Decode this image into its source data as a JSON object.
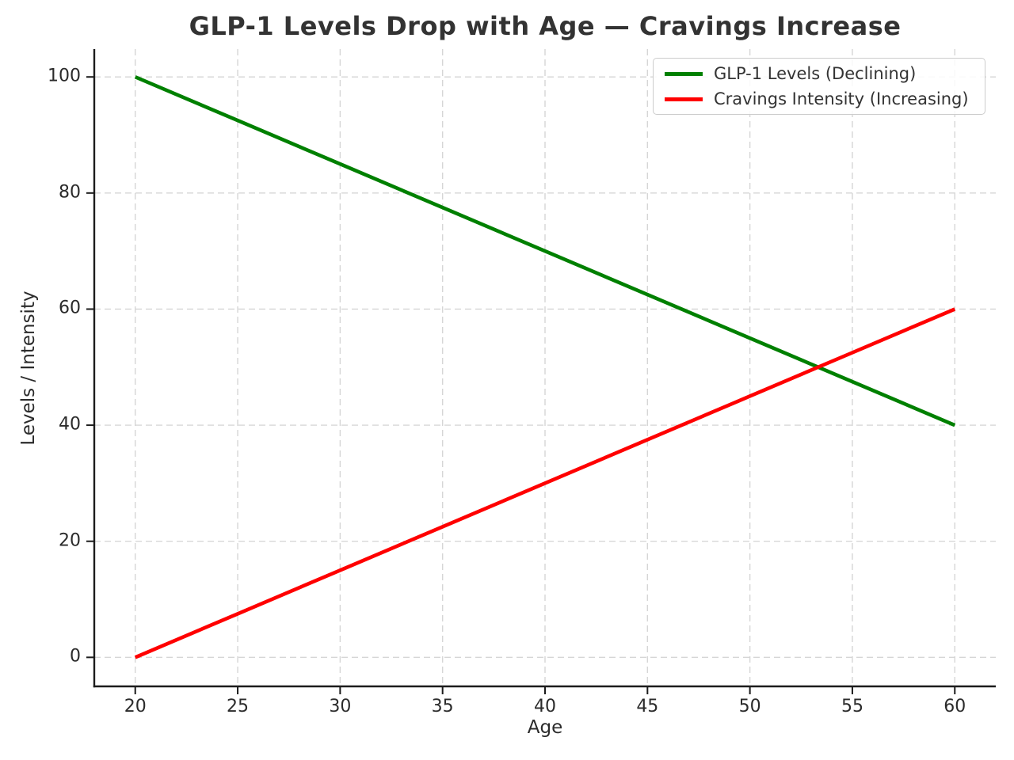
{
  "chart_data": {
    "type": "line",
    "title": "GLP-1 Levels Drop with Age — Cravings Increase",
    "xlabel": "Age",
    "ylabel": "Levels / Intensity",
    "x": [
      20,
      25,
      30,
      35,
      40,
      45,
      50,
      55,
      60
    ],
    "series": [
      {
        "name": "GLP-1 Levels (Declining)",
        "color": "#008000",
        "values": [
          100,
          92.5,
          85,
          77.5,
          70,
          62.5,
          55,
          47.5,
          40
        ]
      },
      {
        "name": "Cravings Intensity (Increasing)",
        "color": "#ff0000",
        "values": [
          0,
          7.5,
          15,
          22.5,
          30,
          37.5,
          45,
          52.5,
          60
        ]
      }
    ],
    "xticks": [
      20,
      25,
      30,
      35,
      40,
      45,
      50,
      55,
      60
    ],
    "yticks": [
      0,
      20,
      40,
      60,
      80,
      100
    ],
    "xlim": [
      18,
      62
    ],
    "ylim": [
      -5,
      104.8
    ],
    "grid": true,
    "grid_style": "dashed",
    "grid_color": "#d6d6d6",
    "spine_color": "#1c1c1c",
    "legend_position": "upper right"
  }
}
